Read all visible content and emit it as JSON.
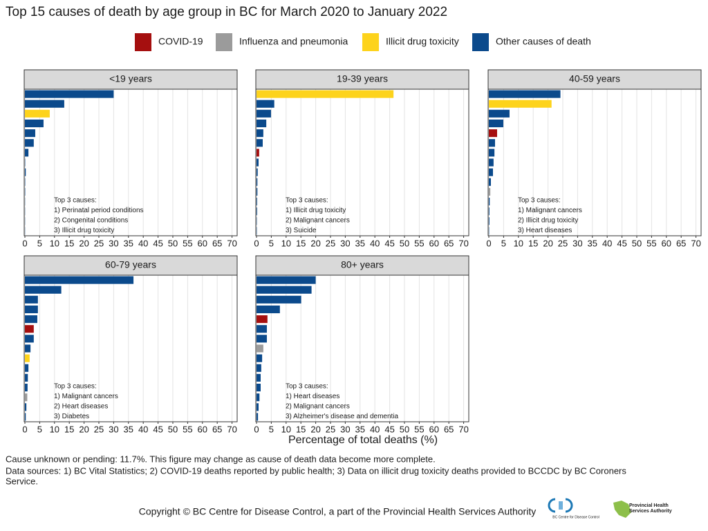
{
  "chart_data": {
    "type": "bar",
    "orientation": "horizontal",
    "title": "Top 15 causes of death by age group in BC for March 2020 to January 2022",
    "legend": [
      {
        "name": "COVID-19",
        "color": "#a50f0f"
      },
      {
        "name": "Influenza and pneumonia",
        "color": "#9b9b9b"
      },
      {
        "name": "Illicit drug toxicity",
        "color": "#fdd31c"
      },
      {
        "name": "Other causes of death",
        "color": "#0b4a8c"
      }
    ],
    "xlabel": "Percentage of total deaths (%)",
    "xlim": [
      0,
      71.5
    ],
    "xticks": [
      0,
      5,
      10,
      15,
      20,
      25,
      30,
      35,
      40,
      45,
      50,
      55,
      60,
      65,
      70
    ],
    "grid": true,
    "panels": [
      {
        "title": "<19 years",
        "values": [
          30,
          13.3,
          8.4,
          6.3,
          3.5,
          3.0,
          1.2,
          0.1,
          0.3,
          0.1,
          0.1,
          0.05,
          0.05,
          0.05,
          0.05
        ],
        "colors": [
          "#0b4a8c",
          "#0b4a8c",
          "#fdd31c",
          "#0b4a8c",
          "#0b4a8c",
          "#0b4a8c",
          "#0b4a8c",
          "#0b4a8c",
          "#0b4a8c",
          "#0b4a8c",
          "#0b4a8c",
          "#0b4a8c",
          "#0b4a8c",
          "#0b4a8c",
          "#0b4a8c"
        ],
        "annotation": [
          "Top 3 causes:",
          "1) Perinatal period conditions",
          "2) Congenital conditions",
          "3) Illicit drug toxicity"
        ]
      },
      {
        "title": "19-39 years",
        "values": [
          46.3,
          6.0,
          4.9,
          3.3,
          2.3,
          2.1,
          0.9,
          0.7,
          0.4,
          0.3,
          0.3,
          0.2,
          0.2,
          0.1,
          0.1
        ],
        "colors": [
          "#fdd31c",
          "#0b4a8c",
          "#0b4a8c",
          "#0b4a8c",
          "#0b4a8c",
          "#0b4a8c",
          "#a50f0f",
          "#0b4a8c",
          "#0b4a8c",
          "#0b4a8c",
          "#0b4a8c",
          "#0b4a8c",
          "#0b4a8c",
          "#0b4a8c",
          "#0b4a8c"
        ],
        "annotation": [
          "Top 3 causes:",
          "1) Illicit drug toxicity",
          "2) Malignant cancers",
          "3) Suicide"
        ]
      },
      {
        "title": "40-59 years",
        "values": [
          24.2,
          21.2,
          7.0,
          4.9,
          2.8,
          2.1,
          1.9,
          1.6,
          1.4,
          0.7,
          0.5,
          0.3,
          0.2,
          0.2,
          0.1
        ],
        "colors": [
          "#0b4a8c",
          "#fdd31c",
          "#0b4a8c",
          "#0b4a8c",
          "#a50f0f",
          "#0b4a8c",
          "#0b4a8c",
          "#0b4a8c",
          "#0b4a8c",
          "#0b4a8c",
          "#9b9b9b",
          "#0b4a8c",
          "#0b4a8c",
          "#0b4a8c",
          "#0b4a8c"
        ],
        "annotation": [
          "Top 3 causes:",
          "1) Malignant cancers",
          "2) Illicit drug toxicity",
          "3) Heart diseases"
        ]
      },
      {
        "title": "60-79 years",
        "values": [
          36.7,
          12.3,
          4.4,
          4.4,
          4.2,
          3.0,
          3.0,
          1.9,
          1.6,
          1.2,
          1.0,
          0.9,
          0.8,
          0.5,
          0.3
        ],
        "colors": [
          "#0b4a8c",
          "#0b4a8c",
          "#0b4a8c",
          "#0b4a8c",
          "#0b4a8c",
          "#a50f0f",
          "#0b4a8c",
          "#0b4a8c",
          "#fdd31c",
          "#0b4a8c",
          "#0b4a8c",
          "#0b4a8c",
          "#9b9b9b",
          "#0b4a8c",
          "#0b4a8c"
        ],
        "annotation": [
          "Top 3 causes:",
          "1) Malignant cancers",
          "2) Heart diseases",
          "3) Diabetes"
        ]
      },
      {
        "title": "80+ years",
        "values": [
          20.0,
          18.6,
          15.1,
          7.9,
          3.7,
          3.5,
          3.5,
          2.3,
          1.9,
          1.6,
          1.4,
          1.4,
          1.0,
          0.7,
          0.5
        ],
        "colors": [
          "#0b4a8c",
          "#0b4a8c",
          "#0b4a8c",
          "#0b4a8c",
          "#a50f0f",
          "#0b4a8c",
          "#0b4a8c",
          "#9b9b9b",
          "#0b4a8c",
          "#0b4a8c",
          "#0b4a8c",
          "#0b4a8c",
          "#0b4a8c",
          "#0b4a8c",
          "#0b4a8c"
        ],
        "annotation": [
          "Top 3 causes:",
          "1) Heart diseases",
          "2) Malignant cancers",
          "3) Alzheimer's disease and dementia"
        ]
      }
    ]
  },
  "notes": [
    "Cause unknown or pending: 11.7%. This figure may change as cause of death data become more complete.",
    "Data sources: 1) BC Vital Statistics; 2) COVID-19 deaths reported by public health; 3) Data on illicit drug toxicity deaths provided to BCCDC by BC Coroners",
    "Service."
  ],
  "footer": {
    "copyright": "Copyright © BC Centre for Disease Control, a part of the Provincial Health Services Authority",
    "logo_left": "BC Centre for Disease Control",
    "logo_right": [
      "Provincial Health",
      "Services Authority"
    ]
  }
}
